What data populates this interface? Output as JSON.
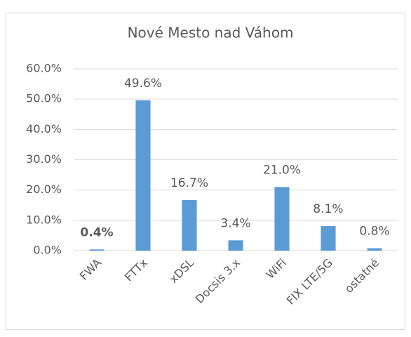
{
  "chart_data": {
    "type": "bar",
    "title": "Nové Mesto nad Váhom",
    "categories": [
      "FWA",
      "FTTx",
      "xDSL",
      "Docsis 3.x",
      "WiFi",
      "FIX LTE/5G",
      "ostatné"
    ],
    "values": [
      0.4,
      49.6,
      16.7,
      3.4,
      21.0,
      8.1,
      0.8
    ],
    "value_labels": [
      "0.4%",
      "49.6%",
      "16.7%",
      "3.4%",
      "21.0%",
      "8.1%",
      "0.8%"
    ],
    "color": "#5b9bd5",
    "ylim": [
      0,
      60
    ],
    "yticks": [
      {
        "value": 0,
        "label": "0.0%"
      },
      {
        "value": 10,
        "label": "10.0%"
      },
      {
        "value": 20,
        "label": "20.0%"
      },
      {
        "value": 30,
        "label": "30.0%"
      },
      {
        "value": 40,
        "label": "40.0%"
      },
      {
        "value": 50,
        "label": "50.0%"
      },
      {
        "value": 60,
        "label": "60.0%"
      }
    ],
    "grid": true
  }
}
